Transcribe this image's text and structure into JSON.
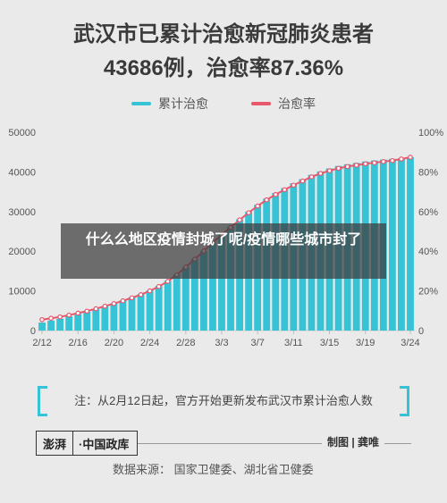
{
  "header": {
    "title": "武汉市已累计治愈新冠肺炎患者",
    "subtitle": "43686例，治愈率87.36%"
  },
  "legend": [
    {
      "label": "累计治愈",
      "color": "#36c3d6"
    },
    {
      "label": "治愈率",
      "color": "#e8576b"
    }
  ],
  "overlay_text": "什么么地区疫情封城了呢/疫情哪些城市封了",
  "note": "注：从2月12日起，官方开始更新发布武汉市累计治愈人数",
  "footer": {
    "logo_mark": "澎湃",
    "logo_text": "·中国政库",
    "credit": "制图 | 龚唯",
    "source": "数据来源：  国家卫健委、湖北省卫健委"
  },
  "chart_data": {
    "type": "bar",
    "title": "",
    "xlabel": "",
    "ylabel": "",
    "ylim": [
      0,
      50000
    ],
    "y2lim": [
      0,
      100
    ],
    "yticks": [
      "0",
      "10000",
      "20000",
      "30000",
      "40000",
      "50000"
    ],
    "y2ticks": [
      "0",
      "20%",
      "40%",
      "60%",
      "80%",
      "100%"
    ],
    "xtick_labels": [
      "2/12",
      "2/16",
      "2/20",
      "2/24",
      "2/28",
      "3/3",
      "3/7",
      "3/11",
      "3/15",
      "3/19",
      "3/24"
    ],
    "grid": false,
    "categories": [
      "2/12",
      "2/13",
      "2/14",
      "2/15",
      "2/16",
      "2/17",
      "2/18",
      "2/19",
      "2/20",
      "2/21",
      "2/22",
      "2/23",
      "2/24",
      "2/25",
      "2/26",
      "2/27",
      "2/28",
      "2/29",
      "3/1",
      "3/2",
      "3/3",
      "3/4",
      "3/5",
      "3/6",
      "3/7",
      "3/8",
      "3/9",
      "3/10",
      "3/11",
      "3/12",
      "3/13",
      "3/14",
      "3/15",
      "3/16",
      "3/17",
      "3/18",
      "3/19",
      "3/20",
      "3/21",
      "3/22",
      "3/23",
      "3/24"
    ],
    "series": [
      {
        "name": "累计治愈",
        "type": "bar",
        "axis": "left",
        "color": "#36c3d6",
        "values": [
          2016,
          2502,
          3001,
          3606,
          4161,
          4732,
          5443,
          6133,
          6839,
          7595,
          8368,
          9164,
          10103,
          11197,
          12536,
          14142,
          16078,
          18080,
          20112,
          22218,
          24287,
          26134,
          28068,
          29943,
          31707,
          33288,
          34680,
          35932,
          37125,
          38178,
          39260,
          40120,
          40856,
          41494,
          41924,
          42269,
          42618,
          42886,
          43099,
          43280,
          43454,
          43686
        ],
        "unit": "例"
      },
      {
        "name": "治愈率",
        "type": "line",
        "axis": "right",
        "color": "#e8576b",
        "values": [
          5.5,
          6.2,
          6.9,
          7.8,
          8.8,
          9.8,
          11.0,
          12.3,
          13.6,
          15.0,
          16.5,
          18.1,
          20.0,
          22.2,
          24.8,
          28.1,
          32.0,
          36.0,
          40.1,
          44.3,
          48.4,
          52.0,
          55.8,
          59.4,
          62.8,
          65.9,
          68.6,
          71.0,
          73.3,
          75.4,
          77.5,
          79.2,
          80.6,
          81.8,
          82.7,
          83.4,
          84.1,
          84.6,
          85.2,
          85.7,
          86.5,
          87.4
        ],
        "unit": "%"
      }
    ]
  }
}
